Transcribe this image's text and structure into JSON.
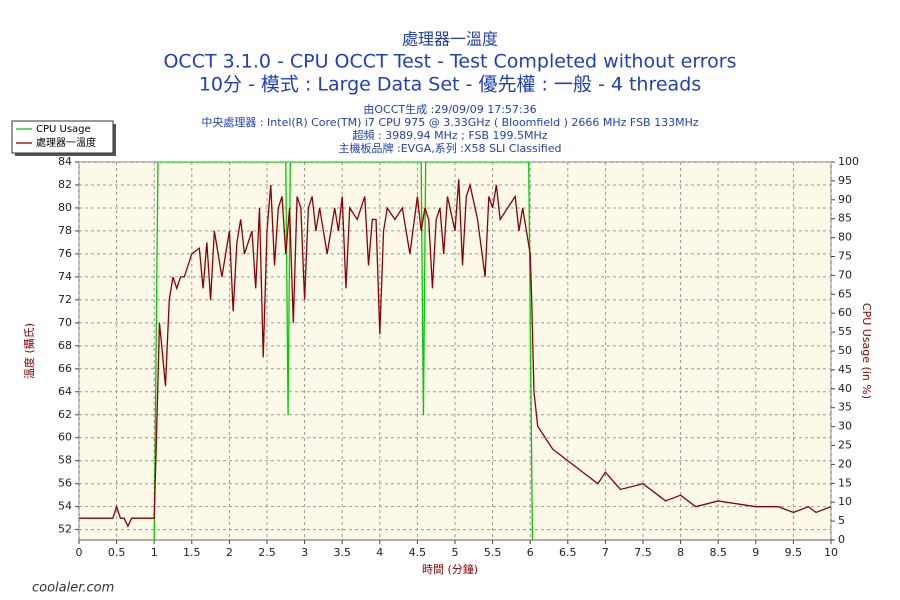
{
  "chart_data": {
    "type": "line",
    "title": "處理器一溫度",
    "subtitle": [
      "OCCT 3.1.0 - CPU OCCT Test - Test Completed without errors",
      "10分 - 模式 : Large Data Set - 優先權 : 一般 - 4 threads"
    ],
    "info": [
      "由OCCT生成 :29/09/09 17:57:36",
      "中央處理器 : Intel(R) Core(TM) i7 CPU 975 @ 3.33GHz ( Bloomfield ) 2666 MHz FSB 133MHz",
      "超頻 : 3989.94 MHz ; FSB 199.5MHz",
      "主機板品牌 :EVGA,系列 :X58 SLI Classified"
    ],
    "xlabel": "時間 (分鐘)",
    "ylabel": "溫度 (攝氏)",
    "y2label": "CPU Usage (in %)",
    "xlim": [
      0,
      10
    ],
    "xticks": [
      0,
      0.5,
      1,
      1.5,
      2,
      2.5,
      3,
      3.5,
      4,
      4.5,
      5,
      5.5,
      6,
      6.5,
      7,
      7.5,
      8,
      8.5,
      9,
      9.5,
      10
    ],
    "ylim": [
      51.1,
      84
    ],
    "yticks": [
      52,
      54,
      56,
      58,
      60,
      62,
      64,
      66,
      68,
      70,
      72,
      74,
      76,
      78,
      80,
      82,
      84
    ],
    "y2lim": [
      0,
      100
    ],
    "y2ticks": [
      0,
      5,
      10,
      15,
      20,
      25,
      30,
      35,
      40,
      45,
      50,
      55,
      60,
      65,
      70,
      75,
      80,
      85,
      90,
      95,
      100
    ],
    "grid": true,
    "legend": "upper-left",
    "series": [
      {
        "name": "CPU Usage",
        "color": "#00cc00",
        "axis": "y2",
        "x": [
          0,
          1.0,
          1.05,
          2.75,
          2.78,
          2.81,
          4.55,
          4.58,
          4.61,
          5.98,
          6.03,
          10
        ],
        "values": [
          0,
          0,
          100,
          100,
          33,
          100,
          100,
          33,
          100,
          100,
          0,
          0
        ]
      },
      {
        "name": "處理器一溫度",
        "color": "#8b0000",
        "x": [
          0,
          0.45,
          0.5,
          0.55,
          0.6,
          0.65,
          0.7,
          0.95,
          1.0,
          1.03,
          1.07,
          1.1,
          1.15,
          1.2,
          1.25,
          1.3,
          1.35,
          1.4,
          1.5,
          1.6,
          1.65,
          1.7,
          1.75,
          1.8,
          1.85,
          1.9,
          2.0,
          2.05,
          2.1,
          2.15,
          2.2,
          2.3,
          2.35,
          2.4,
          2.45,
          2.5,
          2.55,
          2.6,
          2.65,
          2.7,
          2.75,
          2.8,
          2.85,
          2.9,
          2.95,
          3.0,
          3.05,
          3.1,
          3.15,
          3.2,
          3.3,
          3.4,
          3.45,
          3.5,
          3.55,
          3.6,
          3.7,
          3.8,
          3.85,
          3.9,
          3.95,
          4.0,
          4.05,
          4.1,
          4.2,
          4.3,
          4.4,
          4.5,
          4.55,
          4.6,
          4.65,
          4.7,
          4.75,
          4.8,
          4.85,
          4.9,
          5.0,
          5.05,
          5.1,
          5.15,
          5.2,
          5.3,
          5.4,
          5.45,
          5.5,
          5.55,
          5.6,
          5.7,
          5.8,
          5.85,
          5.9,
          5.95,
          6.0,
          6.02,
          6.05,
          6.1,
          6.2,
          6.3,
          6.5,
          6.7,
          6.9,
          7.0,
          7.2,
          7.5,
          7.7,
          7.8,
          8.0,
          8.2,
          8.5,
          9.0,
          9.3,
          9.5,
          9.7,
          9.8,
          10
        ],
        "values": [
          53,
          53,
          54,
          53,
          53,
          52.3,
          53,
          53,
          53,
          60,
          70,
          68,
          64.5,
          72,
          74,
          73,
          74,
          74,
          76,
          76.5,
          73,
          77,
          72,
          78,
          76,
          74,
          78,
          71,
          77,
          79,
          76,
          78,
          73,
          80,
          67,
          78,
          82,
          75,
          80,
          81,
          76,
          80,
          70,
          81,
          80,
          72,
          80,
          81,
          78,
          80,
          76,
          80,
          78,
          81,
          73,
          80,
          79,
          81,
          75,
          79,
          79,
          69,
          78,
          80,
          79,
          80,
          76,
          81,
          78,
          80,
          79,
          73,
          79,
          80,
          76,
          81,
          78,
          82.5,
          75,
          81,
          82,
          79,
          74,
          81,
          80,
          82,
          79,
          80,
          81,
          78,
          80,
          78,
          76,
          72,
          64,
          61,
          60,
          59,
          58,
          57,
          56,
          57,
          55.5,
          56,
          55,
          54.5,
          55,
          54,
          54.5,
          54,
          54,
          53.5,
          54,
          53.5,
          54
        ]
      }
    ]
  },
  "watermark": "coolaler.com"
}
